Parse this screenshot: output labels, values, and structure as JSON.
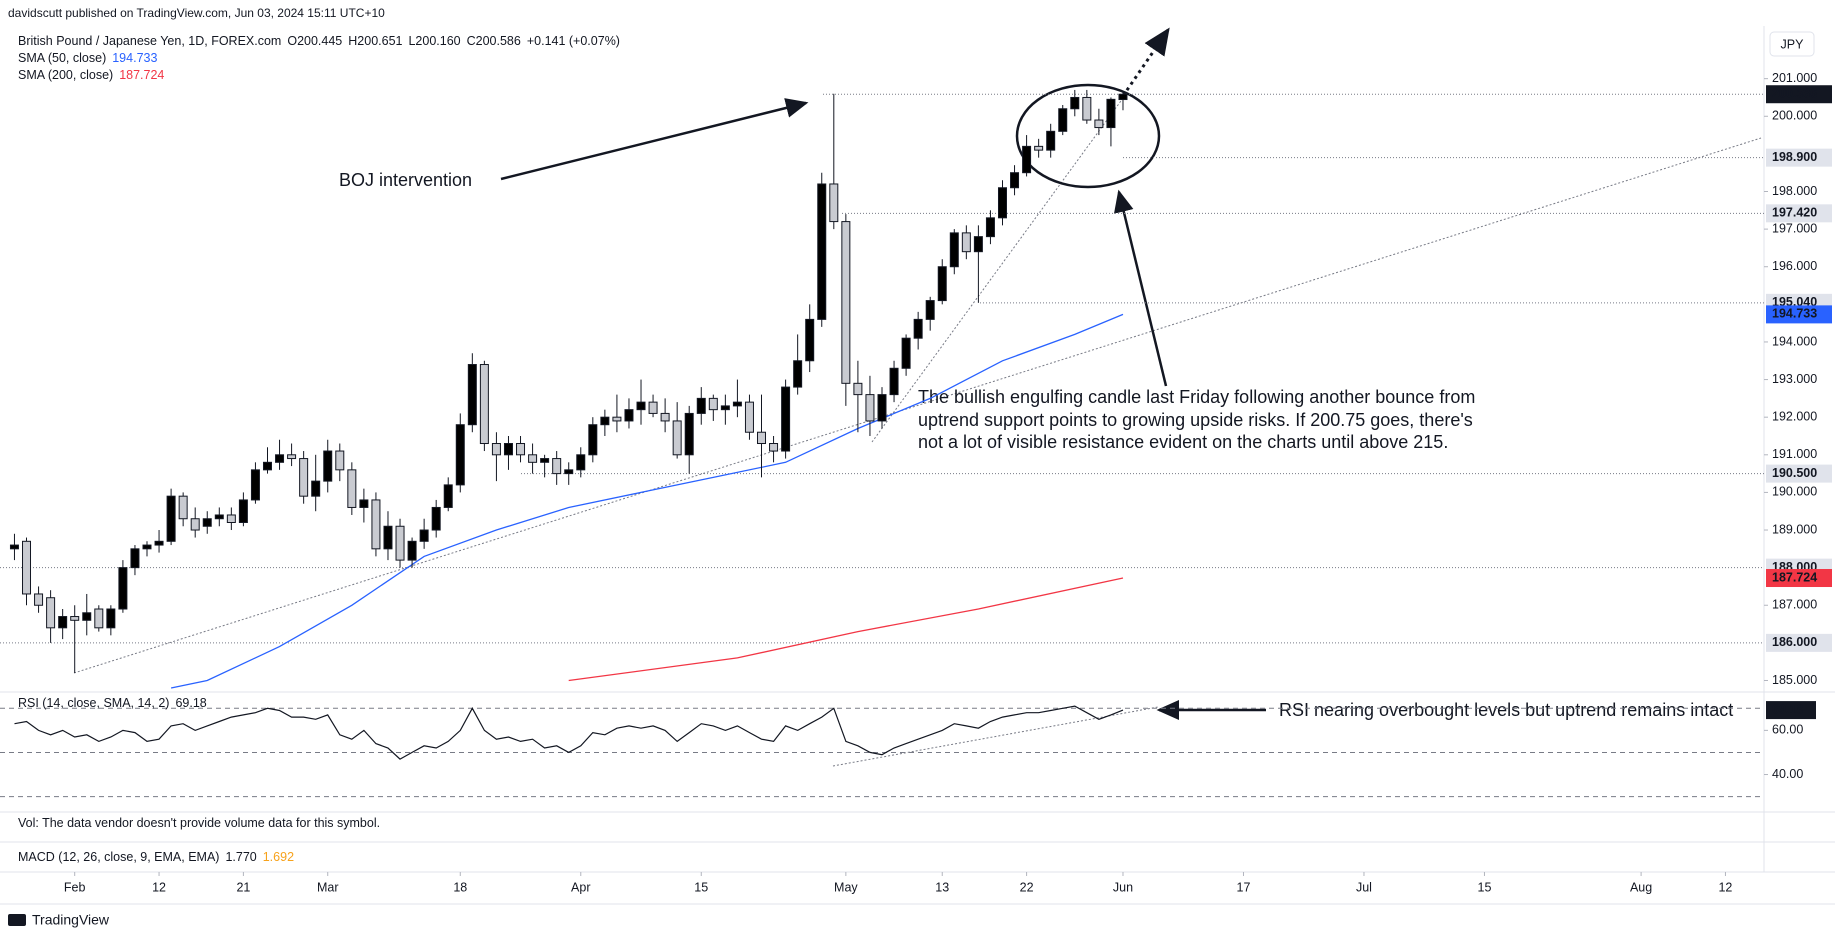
{
  "header": "davidscutt published on TradingView.com, Jun 03, 2024 15:11 UTC+10",
  "footer": "TradingView",
  "currency_button": "JPY",
  "vol_note": "Vol: The data vendor doesn't provide volume data for this symbol.",
  "macd_label": "MACD (12, 26, close, 9, EMA, EMA)",
  "macd_value": "1.770",
  "macd_signal": "1.692",
  "chart_data": [
    {
      "type": "candlestick",
      "title": "British Pound / Japanese Yen, 1D, FOREX.com",
      "ohlc_legend": [
        "O200.445",
        "H200.651",
        "L200.160",
        "C200.586",
        "+0.141 (+0.07%)"
      ],
      "xlim": [
        -1.2,
        145.2
      ],
      "xticks": [
        {
          "value": 5,
          "label": "Feb"
        },
        {
          "value": 12,
          "label": "12"
        },
        {
          "value": 19,
          "label": "21"
        },
        {
          "value": 26,
          "label": "Mar"
        },
        {
          "value": 37,
          "label": "18"
        },
        {
          "value": 47,
          "label": "Apr"
        },
        {
          "value": 57,
          "label": "15"
        },
        {
          "value": 69,
          "label": "May"
        },
        {
          "value": 77,
          "label": "13"
        },
        {
          "value": 84,
          "label": "22"
        },
        {
          "value": 92,
          "label": "Jun"
        },
        {
          "value": 102,
          "label": "17"
        },
        {
          "value": 112,
          "label": "Jul"
        },
        {
          "value": 122,
          "label": "15"
        },
        {
          "value": 135,
          "label": "Aug"
        },
        {
          "value": 142,
          "label": "12"
        }
      ],
      "ylim": [
        184.8,
        202.4
      ],
      "yticks": [
        {
          "value": 185,
          "label": "185.000"
        },
        {
          "value": 187,
          "label": "187.000"
        },
        {
          "value": 189,
          "label": "189.000"
        },
        {
          "value": 190,
          "label": "190.000"
        },
        {
          "value": 191,
          "label": "191.000"
        },
        {
          "value": 192,
          "label": "192.000"
        },
        {
          "value": 193,
          "label": "193.000"
        },
        {
          "value": 194,
          "label": "194.000"
        },
        {
          "value": 196,
          "label": "196.000"
        },
        {
          "value": 197,
          "label": "197.000"
        },
        {
          "value": 198,
          "label": "198.000"
        },
        {
          "value": 200,
          "label": "200.000"
        },
        {
          "value": 201,
          "label": "201.000"
        }
      ],
      "up_color": "#000000",
      "down_color": "#c9cbd1",
      "open": [
        188.5,
        188.7,
        187.3,
        187.2,
        186.4,
        186.7,
        186.6,
        186.9,
        186.4,
        186.9,
        188.0,
        188.5,
        188.6,
        188.7,
        189.9,
        189.3,
        189.1,
        189.3,
        189.4,
        189.2,
        189.8,
        190.6,
        190.8,
        191.0,
        190.9,
        189.9,
        190.3,
        191.1,
        190.6,
        189.6,
        189.8,
        188.5,
        189.1,
        188.2,
        188.7,
        189.0,
        189.6,
        190.2,
        191.8,
        193.4,
        191.3,
        191.0,
        191.3,
        191.0,
        190.8,
        190.9,
        190.5,
        190.6,
        191.0,
        191.8,
        192.0,
        191.9,
        192.2,
        192.4,
        192.1,
        191.9,
        191.0,
        192.1,
        192.5,
        192.2,
        192.3,
        192.4,
        191.6,
        191.3,
        191.1,
        192.8,
        193.5,
        194.6,
        198.2,
        197.2,
        192.9,
        192.6,
        191.9,
        192.6,
        193.3,
        194.1,
        194.6,
        195.1,
        196.0,
        196.9,
        196.4,
        196.8,
        197.3,
        198.1,
        198.5,
        199.2,
        199.1,
        199.6,
        200.2,
        200.5,
        199.9,
        199.7,
        200.445
      ],
      "high": [
        188.9,
        188.8,
        187.5,
        187.4,
        186.9,
        187.0,
        187.3,
        187.0,
        187.0,
        188.2,
        188.6,
        188.7,
        189.0,
        190.1,
        190.0,
        189.6,
        189.5,
        189.6,
        189.6,
        190.0,
        190.8,
        191.2,
        191.4,
        191.3,
        191.1,
        191.0,
        191.4,
        191.3,
        190.8,
        190.1,
        190.0,
        189.5,
        189.3,
        188.8,
        189.3,
        189.8,
        190.4,
        192.1,
        193.7,
        193.5,
        191.6,
        191.5,
        191.5,
        191.3,
        191.0,
        191.1,
        190.8,
        191.2,
        192.0,
        192.2,
        192.6,
        192.5,
        193.0,
        192.6,
        192.5,
        192.4,
        192.3,
        192.8,
        192.6,
        192.6,
        193.0,
        192.6,
        192.6,
        191.5,
        193.0,
        194.2,
        195.0,
        198.5,
        200.6,
        197.4,
        193.5,
        193.1,
        192.8,
        193.5,
        194.2,
        194.8,
        195.2,
        196.2,
        197.0,
        197.1,
        197.1,
        197.5,
        198.3,
        198.7,
        199.5,
        199.4,
        199.8,
        200.3,
        200.7,
        200.7,
        200.2,
        200.5,
        200.651
      ],
      "low": [
        188.2,
        187.0,
        186.8,
        186.0,
        186.1,
        185.2,
        186.2,
        186.3,
        186.2,
        186.8,
        187.8,
        188.3,
        188.4,
        188.6,
        189.1,
        188.8,
        188.9,
        189.1,
        189.0,
        189.1,
        189.7,
        190.5,
        190.6,
        190.7,
        189.7,
        189.5,
        190.0,
        190.3,
        189.4,
        189.2,
        188.3,
        188.2,
        188.0,
        188.0,
        188.5,
        188.8,
        189.5,
        190.0,
        191.6,
        191.1,
        190.3,
        190.6,
        190.8,
        190.5,
        190.4,
        190.2,
        190.2,
        190.4,
        190.8,
        191.5,
        191.6,
        191.7,
        191.8,
        192.0,
        191.6,
        190.9,
        190.5,
        191.8,
        191.9,
        191.8,
        192.0,
        191.4,
        190.4,
        190.8,
        190.9,
        192.6,
        193.2,
        194.4,
        197.0,
        192.3,
        191.6,
        191.5,
        191.7,
        192.4,
        193.1,
        193.8,
        194.3,
        195.0,
        195.8,
        196.2,
        195.04,
        196.6,
        197.1,
        197.9,
        198.4,
        198.9,
        198.9,
        199.5,
        200.0,
        199.8,
        199.5,
        199.2,
        200.16
      ],
      "close": [
        188.6,
        187.3,
        187.0,
        186.4,
        186.7,
        186.6,
        186.8,
        186.4,
        186.9,
        188.0,
        188.5,
        188.6,
        188.7,
        189.9,
        189.3,
        189.0,
        189.3,
        189.4,
        189.2,
        189.8,
        190.6,
        190.8,
        191.0,
        190.9,
        189.9,
        190.3,
        191.1,
        190.6,
        189.6,
        189.8,
        188.5,
        189.1,
        188.2,
        188.7,
        189.0,
        189.6,
        190.2,
        191.8,
        193.4,
        191.3,
        191.0,
        191.3,
        191.0,
        190.8,
        190.9,
        190.5,
        190.6,
        191.0,
        191.8,
        192.0,
        191.9,
        192.2,
        192.4,
        192.1,
        191.9,
        191.0,
        192.1,
        192.5,
        192.2,
        192.3,
        192.4,
        191.6,
        191.3,
        191.1,
        192.8,
        193.5,
        194.6,
        198.2,
        197.2,
        192.9,
        192.6,
        191.9,
        192.6,
        193.3,
        194.1,
        194.6,
        195.1,
        196.0,
        196.9,
        196.4,
        196.8,
        197.3,
        198.1,
        198.5,
        199.2,
        199.1,
        199.6,
        200.2,
        200.5,
        199.9,
        199.7,
        200.45,
        200.586
      ],
      "overlays": [
        {
          "name": "SMA (50, close)",
          "color": "#2962ff",
          "value_label": "194.733",
          "x": [
            13,
            16,
            22,
            28,
            34,
            40,
            46,
            52,
            58,
            64,
            70,
            76,
            82,
            88,
            92
          ],
          "values": [
            184.8,
            185.0,
            185.9,
            187.0,
            188.3,
            189.0,
            189.6,
            190.0,
            190.4,
            190.8,
            191.7,
            192.5,
            193.5,
            194.2,
            194.733
          ]
        },
        {
          "name": "SMA (200, close)",
          "color": "#f23645",
          "value_label": "187.724",
          "x": [
            46,
            60,
            70,
            80,
            92
          ],
          "values": [
            185.0,
            185.6,
            186.3,
            186.9,
            187.724
          ]
        }
      ],
      "levels": [
        {
          "value": 200.586,
          "label": "200.586",
          "color": "#131722"
        },
        {
          "value": 198.9,
          "label": "198.900",
          "color": "#e0e3eb"
        },
        {
          "value": 197.42,
          "label": "197.420",
          "color": "#e0e3eb"
        },
        {
          "value": 195.04,
          "label": "195.040",
          "color": "#e0e3eb"
        },
        {
          "value": 190.5,
          "label": "190.500",
          "color": "#e0e3eb"
        },
        {
          "value": 188.0,
          "label": "188.000",
          "color": "#e0e3eb"
        },
        {
          "value": 186.0,
          "label": "186.000",
          "color": "#e0e3eb"
        }
      ],
      "annotations": [
        "BOJ intervention",
        "The bullish engulfing candle last Friday following another bounce from",
        "uptrend support points to growing upside risks. If 200.75 goes, there's",
        "not a lot of visible resistance evident on the charts until above 215."
      ]
    },
    {
      "type": "line",
      "title": "RSI (14, close, SMA, 14, 2)",
      "value_label": "69.18",
      "color": "#131722",
      "xlim": [
        -1.2,
        145.2
      ],
      "ylim": [
        25.3,
        74.2
      ],
      "yticks": [
        {
          "value": 60,
          "label": "60.00"
        },
        {
          "value": 40,
          "label": "40.00"
        }
      ],
      "levels": [
        70,
        50,
        30
      ],
      "values": [
        63,
        64,
        60,
        58,
        60,
        57,
        58,
        55,
        57,
        60,
        59,
        55,
        56,
        62,
        63,
        60,
        62,
        64,
        66,
        67,
        68,
        70,
        69,
        66,
        66,
        65,
        67,
        58,
        56,
        60,
        54,
        52,
        47,
        50,
        53,
        52,
        55,
        60,
        70,
        60,
        56,
        57,
        55,
        56,
        52,
        53,
        50,
        53,
        59,
        58,
        61,
        62,
        61,
        62,
        60,
        55,
        59,
        63,
        62,
        60,
        62,
        59,
        56,
        55,
        62,
        60,
        63,
        66,
        70,
        55,
        53,
        50,
        49,
        52,
        54,
        56,
        58,
        60,
        63,
        62,
        61,
        64,
        66,
        67,
        68,
        68,
        69,
        70,
        71,
        68,
        65,
        67,
        69.18
      ],
      "annotation": "RSI nearing overbought levels but uptrend remains intact"
    }
  ]
}
